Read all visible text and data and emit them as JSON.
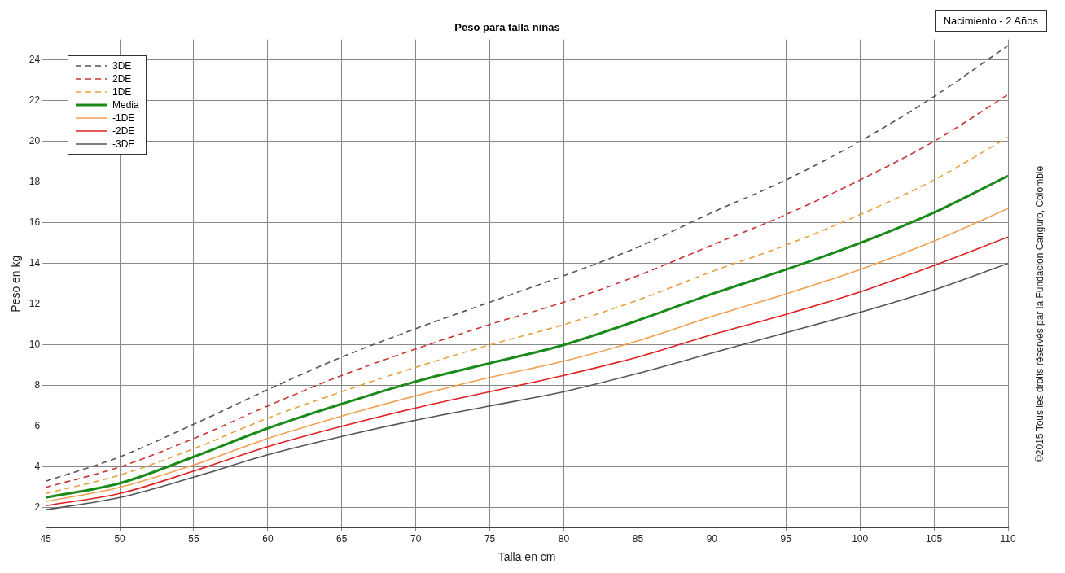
{
  "chart_data": {
    "type": "line",
    "title": "Peso para talla niñas",
    "xlabel": "Talla en cm",
    "ylabel": "Peso en kg",
    "annotations": [
      "Nacimiento - 2 Años",
      "©2015 Tous les droits réservés par la Fundacion Canguro, Colombie"
    ],
    "x": [
      45,
      50,
      55,
      60,
      65,
      70,
      75,
      80,
      85,
      90,
      95,
      100,
      105,
      110
    ],
    "xlim": [
      45,
      110
    ],
    "xticks": [
      45,
      50,
      55,
      60,
      65,
      70,
      75,
      80,
      85,
      90,
      95,
      100,
      105,
      110
    ],
    "ylim": [
      1,
      25
    ],
    "yticks": [
      2,
      4,
      6,
      8,
      10,
      12,
      14,
      16,
      18,
      20,
      22,
      24
    ],
    "grid": true,
    "legend": "top left",
    "marker": "none",
    "series": [
      {
        "name": "3DE",
        "color": "#555555",
        "line_style": "dashed",
        "values": [
          3.3,
          4.5,
          6.1,
          7.8,
          9.4,
          10.8,
          12.1,
          13.4,
          14.8,
          16.5,
          18.1,
          20.0,
          22.2,
          24.7
        ]
      },
      {
        "name": "2DE",
        "color": "#cc3333",
        "line_style": "dashed",
        "values": [
          3.0,
          4.0,
          5.4,
          7.0,
          8.5,
          9.8,
          11.0,
          12.1,
          13.4,
          14.9,
          16.4,
          18.1,
          20.0,
          22.3
        ]
      },
      {
        "name": "1DE",
        "color": "#e8a040",
        "line_style": "dashed",
        "values": [
          2.7,
          3.6,
          4.9,
          6.4,
          7.7,
          8.9,
          10.0,
          11.0,
          12.2,
          13.6,
          14.9,
          16.4,
          18.1,
          20.2
        ]
      },
      {
        "name": "Media",
        "color": "#1a8a1a",
        "line_style": "solid",
        "values": [
          2.5,
          3.2,
          4.5,
          5.9,
          7.1,
          8.2,
          9.1,
          10.0,
          11.2,
          12.5,
          13.7,
          15.0,
          16.5,
          18.3
        ]
      },
      {
        "name": "-1DE",
        "color": "#f0a050",
        "line_style": "solid",
        "values": [
          2.3,
          3.0,
          4.1,
          5.4,
          6.5,
          7.5,
          8.4,
          9.2,
          10.2,
          11.4,
          12.5,
          13.7,
          15.1,
          16.7
        ]
      },
      {
        "name": "-2DE",
        "color": "#e02020",
        "line_style": "solid",
        "values": [
          2.1,
          2.7,
          3.8,
          5.0,
          6.0,
          6.9,
          7.7,
          8.5,
          9.4,
          10.5,
          11.5,
          12.6,
          13.9,
          15.3
        ]
      },
      {
        "name": "-3DE",
        "color": "#555555",
        "line_style": "solid",
        "values": [
          1.9,
          2.5,
          3.5,
          4.6,
          5.5,
          6.3,
          7.0,
          7.7,
          8.6,
          9.6,
          10.6,
          11.6,
          12.7,
          14.0
        ]
      }
    ]
  }
}
